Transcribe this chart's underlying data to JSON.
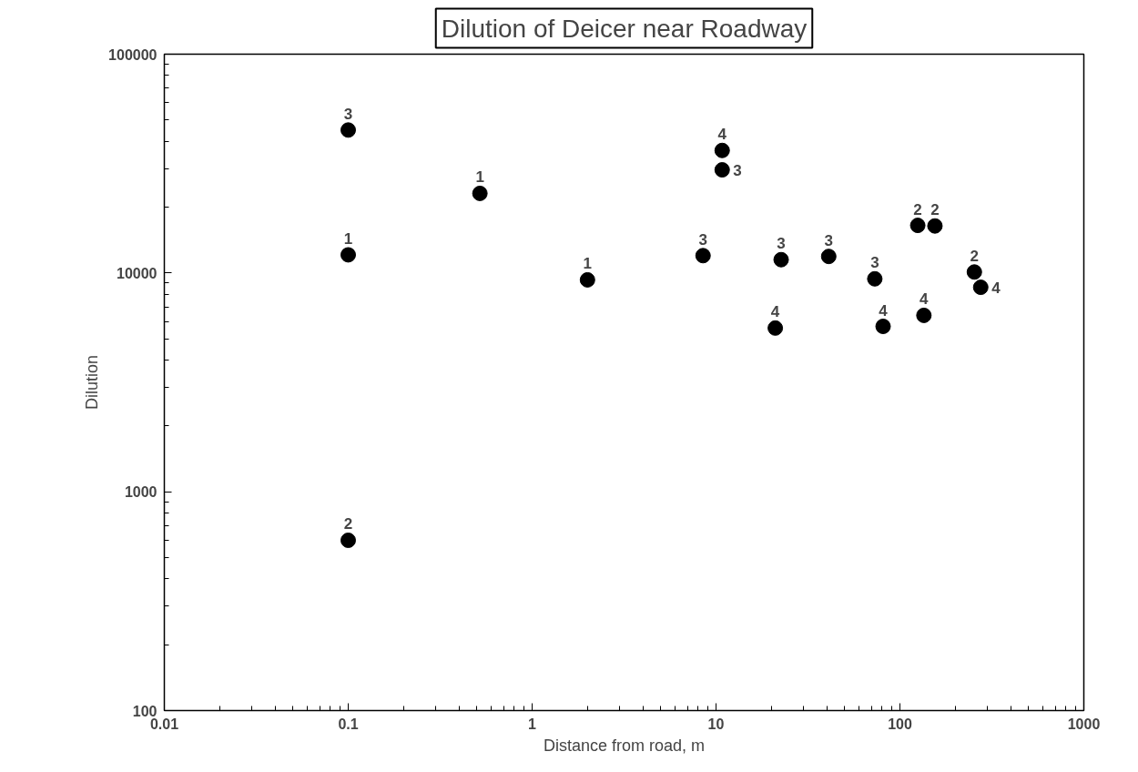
{
  "chart_data": {
    "type": "scatter",
    "title": "Dilution of Deicer near Roadway",
    "xlabel": "Distance from road, m",
    "ylabel": "Dilution",
    "log": "xy",
    "grid": false,
    "marker": "circle",
    "xlim": [
      0.01,
      1000
    ],
    "xticks": [
      0.01,
      0.1,
      1,
      10,
      100,
      1000
    ],
    "ylim": [
      100,
      100000
    ],
    "yticks": [
      100,
      1000,
      10000,
      100000
    ],
    "series": [
      {
        "color": "#000000",
        "x": [
          0.1,
          0.1,
          0.1,
          0.52,
          2,
          8.5,
          10.8,
          10.8,
          21,
          22.6,
          41,
          73,
          81,
          125,
          135,
          155,
          254,
          275
        ],
        "values": [
          45000,
          12100,
          600,
          23100,
          9300,
          12000,
          36300,
          29600,
          5600,
          11500,
          11900,
          9400,
          5700,
          16500,
          6400,
          16400,
          10100,
          8600
        ]
      }
    ],
    "annotations": [
      {
        "text": "3",
        "x": 0.1,
        "y": 45000
      },
      {
        "text": "1",
        "x": 0.1,
        "y": 12100
      },
      {
        "text": "2",
        "x": 0.1,
        "y": 600
      },
      {
        "text": "1",
        "x": 0.52,
        "y": 23100
      },
      {
        "text": "1",
        "x": 2,
        "y": 9300
      },
      {
        "text": "3",
        "x": 8.5,
        "y": 12000
      },
      {
        "text": "4",
        "x": 10.8,
        "y": 36300
      },
      {
        "text": "3",
        "x": 10.8,
        "y": 29600
      },
      {
        "text": "4",
        "x": 21,
        "y": 5600
      },
      {
        "text": "3",
        "x": 22.6,
        "y": 11500
      },
      {
        "text": "3",
        "x": 41,
        "y": 11900
      },
      {
        "text": "3",
        "x": 73,
        "y": 9400
      },
      {
        "text": "4",
        "x": 81,
        "y": 5700
      },
      {
        "text": "2",
        "x": 125,
        "y": 16500
      },
      {
        "text": "4",
        "x": 135,
        "y": 6400
      },
      {
        "text": "2",
        "x": 155,
        "y": 16400
      },
      {
        "text": "2",
        "x": 254,
        "y": 10100
      },
      {
        "text": "4",
        "x": 275,
        "y": 8600
      }
    ]
  }
}
